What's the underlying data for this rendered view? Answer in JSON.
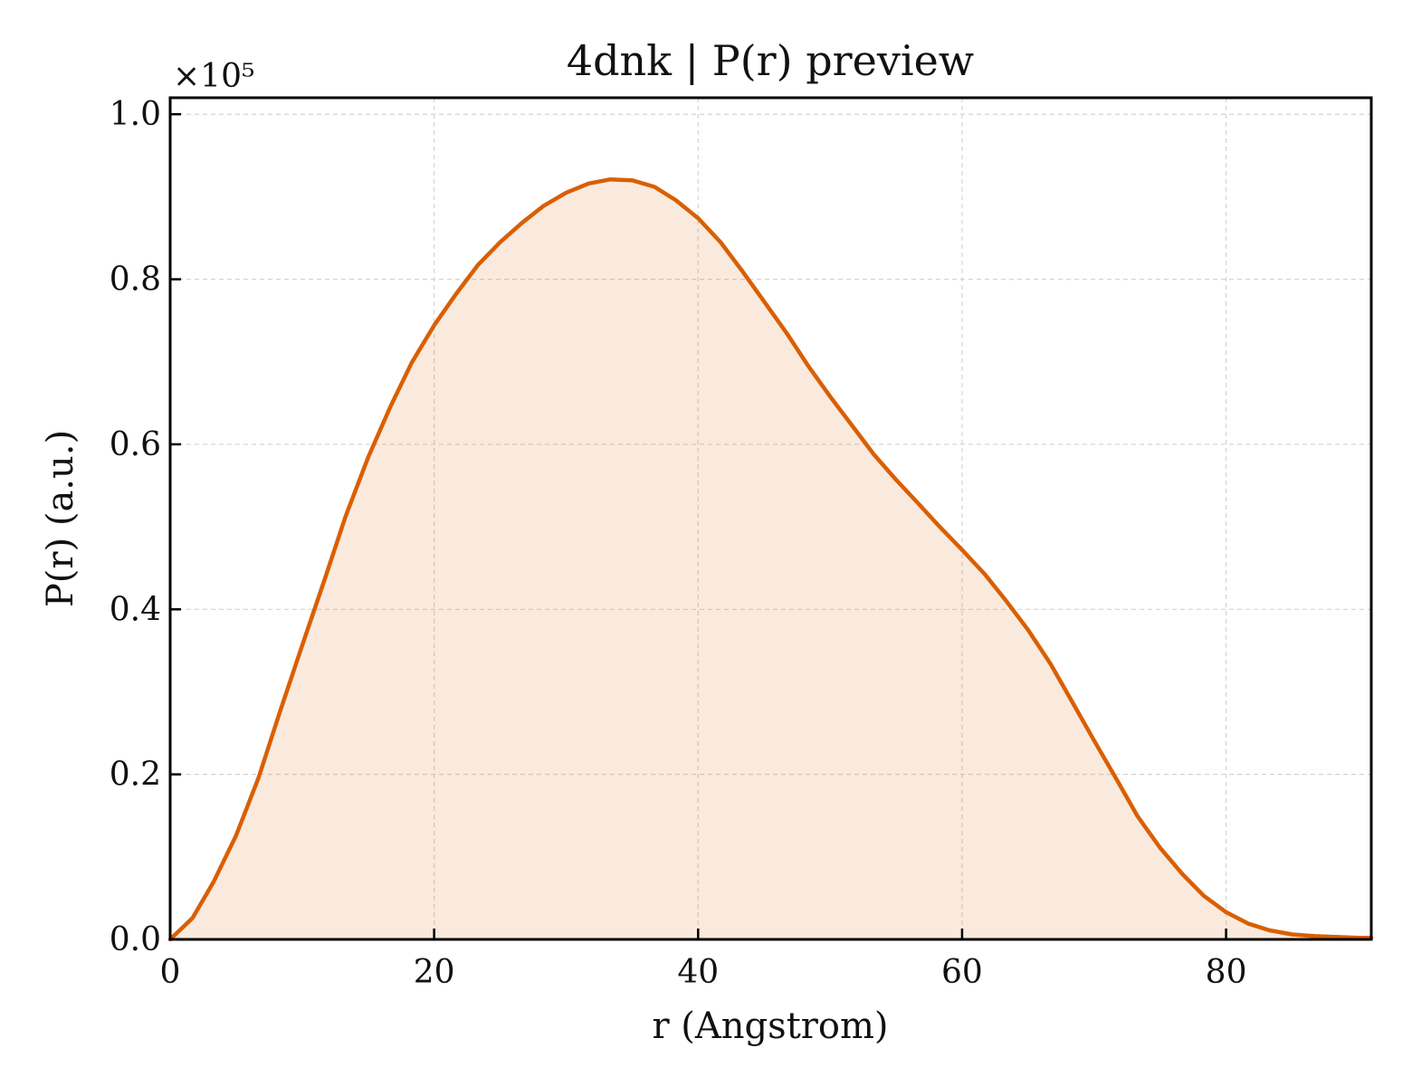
{
  "chart_data": {
    "type": "area",
    "title": "4dnk | P(r) preview",
    "xlabel": "r (Angstrom)",
    "ylabel": "P(r) (a.u.)",
    "y_multiplier_label": "×10⁵",
    "xlim": [
      0,
      91
    ],
    "ylim": [
      0,
      1.02
    ],
    "x_ticks": [
      0,
      20,
      40,
      60,
      80
    ],
    "x_tick_labels": [
      "0",
      "20",
      "40",
      "60",
      "80"
    ],
    "y_ticks": [
      0.0,
      0.2,
      0.4,
      0.6,
      0.8,
      1.0
    ],
    "y_tick_labels": [
      "0.0",
      "0.2",
      "0.4",
      "0.6",
      "0.8",
      "1.0"
    ],
    "grid": true,
    "series": [
      {
        "color": "#d95f02",
        "fill_color": "#d95f02",
        "fill_opacity": 0.13,
        "x": [
          0,
          1.7,
          3.3,
          5.0,
          6.7,
          8.3,
          10.0,
          11.7,
          13.3,
          15.0,
          16.7,
          18.3,
          20.0,
          21.7,
          23.3,
          25.0,
          26.7,
          28.3,
          30.0,
          31.7,
          33.3,
          35.0,
          36.7,
          38.3,
          40.0,
          41.7,
          43.3,
          45.0,
          46.7,
          48.3,
          50.0,
          51.7,
          53.3,
          55.0,
          56.7,
          58.3,
          60.0,
          61.7,
          63.3,
          65.0,
          66.7,
          68.3,
          70.0,
          71.7,
          73.3,
          75.0,
          76.7,
          78.3,
          80.0,
          81.7,
          83.3,
          85.0,
          86.7,
          88.3,
          90.0,
          91.0
        ],
        "y": [
          0.0,
          0.026,
          0.07,
          0.126,
          0.196,
          0.275,
          0.356,
          0.436,
          0.513,
          0.584,
          0.646,
          0.699,
          0.744,
          0.783,
          0.817,
          0.845,
          0.869,
          0.889,
          0.905,
          0.916,
          0.921,
          0.92,
          0.912,
          0.896,
          0.874,
          0.845,
          0.811,
          0.773,
          0.735,
          0.696,
          0.658,
          0.622,
          0.588,
          0.557,
          0.528,
          0.5,
          0.472,
          0.443,
          0.411,
          0.375,
          0.334,
          0.289,
          0.241,
          0.194,
          0.149,
          0.111,
          0.079,
          0.053,
          0.033,
          0.019,
          0.011,
          0.006,
          0.004,
          0.003,
          0.002,
          0.002
        ]
      }
    ]
  }
}
